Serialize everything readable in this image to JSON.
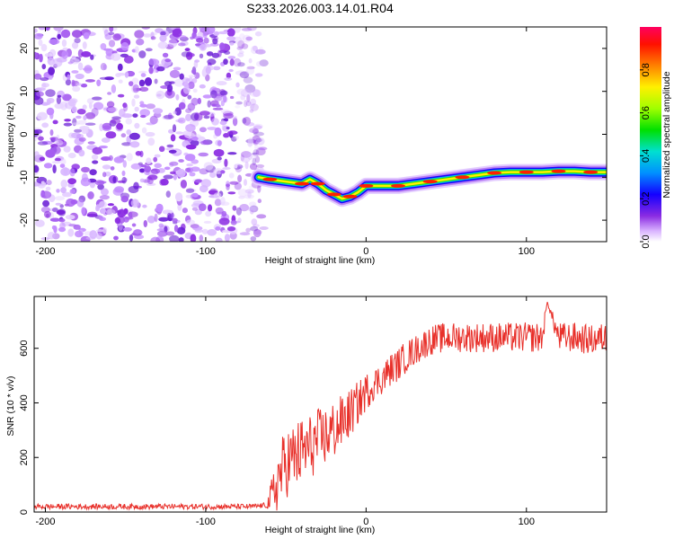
{
  "title": "S233.2026.003.14.01.R04",
  "colors": {
    "snr_line": "#e8302a",
    "axis": "#000000",
    "background": "#ffffff"
  },
  "chart_data": [
    {
      "type": "heatmap",
      "name": "spectrogram",
      "title": "",
      "xlabel": "Height of straight line (km)",
      "ylabel": "Frequency (Hz)",
      "xlim": [
        -207,
        150
      ],
      "ylim": [
        -25,
        25
      ],
      "xticks": [
        -200,
        -100,
        0,
        100
      ],
      "xtick_labels": [
        "-200",
        "-100",
        "0",
        "100"
      ],
      "yticks": [
        -20,
        -10,
        0,
        10,
        20
      ],
      "ytick_labels": [
        "-20",
        "-10",
        "0",
        "10",
        "20"
      ],
      "noise_region": {
        "x_start": -207,
        "x_end": -67,
        "description_level": "low amplitude noise 0.0-0.2"
      },
      "signal_trace": {
        "x": [
          -67,
          -60,
          -50,
          -40,
          -35,
          -30,
          -25,
          -20,
          -15,
          -10,
          -5,
          0,
          10,
          20,
          30,
          40,
          50,
          60,
          70,
          80,
          90,
          100,
          110,
          120,
          130,
          140,
          150
        ],
        "y": [
          -10,
          -10.5,
          -11,
          -11.5,
          -10.5,
          -11.5,
          -13,
          -14,
          -15,
          -14.5,
          -13.5,
          -12,
          -12,
          -12,
          -11.5,
          -11,
          -10.5,
          -10,
          -9.5,
          -9,
          -8.8,
          -8.8,
          -8.8,
          -8.6,
          -8.6,
          -8.8,
          -8.8
        ],
        "peak_amplitude": 1.0
      },
      "colorbar": {
        "label": "Normalized spectral amplitude",
        "range": [
          0.0,
          1.0
        ],
        "ticks": [
          0.0,
          0.2,
          0.4,
          0.6,
          0.8
        ],
        "tick_labels": [
          "0.0",
          "0.2",
          "0.4",
          "0.6",
          "0.8"
        ]
      }
    },
    {
      "type": "line",
      "name": "snr",
      "title": "",
      "xlabel": "Height of straight line (km)",
      "ylabel": "SNR (10 * v/v)",
      "xlim": [
        -207,
        150
      ],
      "ylim": [
        0,
        790
      ],
      "xticks": [
        -200,
        -100,
        0,
        100
      ],
      "xtick_labels": [
        "-200",
        "-100",
        "0",
        "100"
      ],
      "yticks": [
        0,
        200,
        400,
        600
      ],
      "ytick_labels": [
        "0",
        "200",
        "400",
        "600"
      ],
      "series": [
        {
          "name": "SNR",
          "x": [
            -207,
            -180,
            -150,
            -120,
            -90,
            -70,
            -62,
            -58,
            -55,
            -50,
            -45,
            -40,
            -35,
            -30,
            -25,
            -20,
            -15,
            -10,
            -5,
            0,
            5,
            10,
            15,
            20,
            25,
            30,
            35,
            40,
            50,
            60,
            70,
            80,
            90,
            100,
            110,
            113,
            120,
            130,
            140,
            150
          ],
          "values": [
            20,
            20,
            20,
            20,
            20,
            20,
            25,
            60,
            120,
            180,
            200,
            220,
            240,
            260,
            280,
            300,
            330,
            360,
            400,
            440,
            470,
            490,
            520,
            540,
            570,
            590,
            610,
            630,
            640,
            640,
            640,
            640,
            640,
            640,
            640,
            770,
            640,
            640,
            630,
            640
          ],
          "noise_amplitude": [
            10,
            10,
            10,
            10,
            10,
            10,
            10,
            90,
            120,
            130,
            130,
            130,
            120,
            120,
            110,
            110,
            100,
            90,
            80,
            70,
            60,
            60,
            60,
            60,
            60,
            55,
            55,
            55,
            55,
            55,
            55,
            55,
            55,
            55,
            55,
            0,
            55,
            55,
            55,
            55
          ]
        }
      ]
    }
  ]
}
